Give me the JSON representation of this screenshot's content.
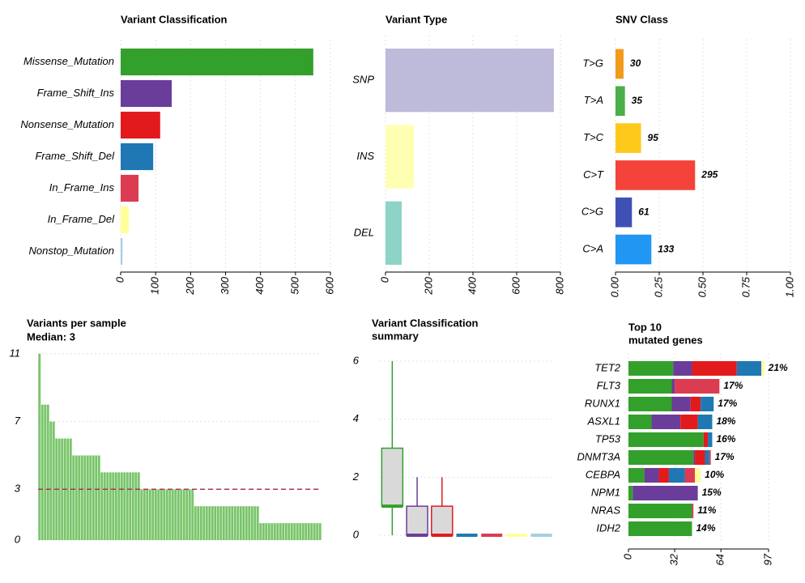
{
  "chart_data": [
    {
      "type": "hbar",
      "title": "Variant Classification",
      "categories": [
        "Missense_Mutation",
        "Frame_Shift_Ins",
        "Nonsense_Mutation",
        "Frame_Shift_Del",
        "In_Frame_Ins",
        "In_Frame_Del",
        "Nonstop_Mutation"
      ],
      "values": [
        551,
        146,
        113,
        93,
        51,
        23,
        5
      ],
      "colors": [
        "#33a02c",
        "#6a3d9a",
        "#e31a1c",
        "#1f78b4",
        "#dc3c52",
        "#ffff99",
        "#a6cee3"
      ],
      "xlim": [
        0,
        600
      ],
      "xticks": [
        0,
        100,
        200,
        300,
        400,
        500,
        600
      ],
      "grid": true
    },
    {
      "type": "hbar",
      "title": "Variant Type",
      "categories": [
        "SNP",
        "INS",
        "DEL"
      ],
      "values": [
        770,
        130,
        74
      ],
      "colors": [
        "#bebada",
        "#ffffb3",
        "#8dd3c7"
      ],
      "xlim": [
        0,
        800
      ],
      "xticks": [
        0,
        200,
        400,
        600,
        800
      ],
      "grid": true
    },
    {
      "type": "hbar",
      "title": "SNV Class",
      "categories": [
        "T>G",
        "T>A",
        "T>C",
        "C>T",
        "C>G",
        "C>A"
      ],
      "values": [
        0.046,
        0.054,
        0.146,
        0.455,
        0.094,
        0.205
      ],
      "count_labels": [
        30,
        35,
        95,
        295,
        61,
        133
      ],
      "colors": [
        "#f29a1c",
        "#4daf4a",
        "#ffc91b",
        "#f4433a",
        "#3f51b5",
        "#2196f3"
      ],
      "xlim": [
        0,
        1
      ],
      "xticks": [
        {
          "value": 0,
          "label": "0.00"
        },
        {
          "value": 0.25,
          "label": "0.25"
        },
        {
          "value": 0.5,
          "label": "0.50"
        },
        {
          "value": 0.75,
          "label": "0.75"
        },
        {
          "value": 1,
          "label": "1.00"
        }
      ],
      "grid": true
    },
    {
      "type": "bar",
      "title": "Variants per sample",
      "median": {
        "value": 3,
        "label": "Median: 3"
      },
      "values": [
        11,
        8,
        8,
        8,
        7,
        7,
        6,
        6,
        6,
        6,
        6,
        6,
        5,
        5,
        5,
        5,
        5,
        5,
        5,
        5,
        5,
        5,
        4,
        4,
        4,
        4,
        4,
        4,
        4,
        4,
        4,
        4,
        4,
        4,
        4,
        4,
        3,
        3,
        3,
        3,
        3,
        3,
        3,
        3,
        3,
        3,
        3,
        3,
        3,
        3,
        3,
        3,
        3,
        3,
        3,
        2,
        2,
        2,
        2,
        2,
        2,
        2,
        2,
        2,
        2,
        2,
        2,
        2,
        2,
        2,
        2,
        2,
        2,
        2,
        2,
        2,
        2,
        2,
        1,
        1,
        1,
        1,
        1,
        1,
        1,
        1,
        1,
        1,
        1,
        1,
        1,
        1,
        1,
        1,
        1,
        1,
        1,
        1,
        1,
        1
      ],
      "color": "#6abf5a",
      "median_color": "#b03060",
      "ylim": [
        0,
        11
      ],
      "yticks": [
        0,
        3,
        7,
        11
      ],
      "grid": true
    },
    {
      "type": "box",
      "title": [
        "Variant Classification",
        "summary"
      ],
      "min": [
        0,
        0,
        0,
        0,
        0,
        0,
        0
      ],
      "q1": [
        1,
        0,
        0,
        0,
        0,
        0,
        0
      ],
      "median": [
        1,
        0,
        0,
        0,
        0,
        0,
        0
      ],
      "q3": [
        3,
        1,
        1,
        0,
        0,
        0,
        0
      ],
      "max": [
        6,
        2,
        2,
        0,
        0,
        0,
        0
      ],
      "colors": [
        "#33a02c",
        "#6a3d9a",
        "#e31a1c",
        "#1f78b4",
        "#dc3c52",
        "#ffff99",
        "#a6cee3"
      ],
      "ylim": [
        0,
        6
      ],
      "yticks": [
        0,
        2,
        4,
        6
      ],
      "grid": true
    },
    {
      "type": "stacked_hbar",
      "title": [
        "Top 10",
        "mutated genes"
      ],
      "categories": [
        "TET2",
        "FLT3",
        "RUNX1",
        "ASXL1",
        "TP53",
        "DNMT3A",
        "CEBPA",
        "NPM1",
        "NRAS",
        "IDH2"
      ],
      "percent_labels": [
        "21%",
        "17%",
        "17%",
        "18%",
        "16%",
        "17%",
        "10%",
        "15%",
        "11%",
        "14%"
      ],
      "series": [
        {
          "color": "#33a02c",
          "values": [
            31,
            30,
            30,
            16,
            52,
            45,
            11,
            3,
            44,
            44
          ]
        },
        {
          "color": "#6a3d9a",
          "values": [
            13,
            2,
            13,
            20,
            0,
            1,
            10,
            45,
            0,
            0
          ]
        },
        {
          "color": "#e31a1c",
          "values": [
            31,
            0,
            7,
            12,
            3,
            7,
            7,
            0,
            0,
            0
          ]
        },
        {
          "color": "#1f78b4",
          "values": [
            17,
            0,
            9,
            10,
            3,
            3,
            11,
            0,
            0,
            0
          ]
        },
        {
          "color": "#dc3c52",
          "values": [
            0,
            31,
            0,
            0,
            0,
            1,
            7,
            0,
            1,
            0
          ]
        },
        {
          "color": "#ffff99",
          "values": [
            2,
            0,
            0,
            0,
            0,
            0,
            4,
            0,
            0,
            0
          ]
        }
      ],
      "xlim": [
        0,
        97
      ],
      "xticks": [
        0,
        32,
        64,
        97
      ],
      "grid": true
    }
  ]
}
